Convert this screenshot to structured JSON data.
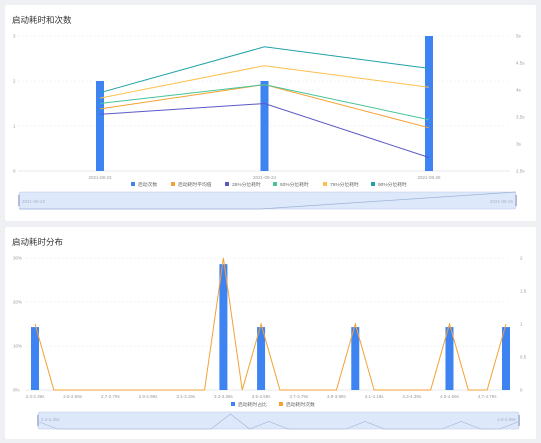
{
  "panels": {
    "startup": {
      "title": "启动耗时和次数"
    },
    "distribution": {
      "title": "启动耗时分布"
    }
  },
  "colors": {
    "bar": "#3e83f2",
    "orange": "#f5a134",
    "purple": "#5b58c6",
    "green": "#45c497",
    "yellow": "#fbc04c",
    "teal": "#1fa2a8",
    "slider_fill": "#dde8fb",
    "slider_border": "#b8c8e4"
  },
  "chart_data": [
    {
      "type": "bar",
      "title": "启动耗时和次数",
      "categories": [
        "2021-08-23",
        "2021-08-24",
        "2021-08-25"
      ],
      "y_left": {
        "ticks": [
          "0",
          "1",
          "2",
          "3"
        ],
        "ylim": [
          0,
          3
        ]
      },
      "y_right": {
        "ticks": [
          "2.5s",
          "3s",
          "3.5s",
          "4s",
          "4.5s",
          "5s"
        ],
        "ylim": [
          2.5,
          5
        ]
      },
      "bar_series": {
        "name": "启动次数",
        "values": [
          2,
          2,
          3
        ]
      },
      "line_series": [
        {
          "name": "启动耗时平均值",
          "color": "orange",
          "values": [
            3.65,
            4.1,
            3.3
          ]
        },
        {
          "name": "25%分位耗时",
          "color": "purple",
          "values": [
            3.55,
            3.75,
            2.75
          ]
        },
        {
          "name": "50%分位耗时",
          "color": "green",
          "values": [
            3.75,
            4.1,
            3.45
          ]
        },
        {
          "name": "75%分位耗时",
          "color": "yellow",
          "values": [
            3.85,
            4.45,
            4.05
          ]
        },
        {
          "name": "90%分位耗时",
          "color": "teal",
          "values": [
            3.95,
            4.8,
            4.4
          ]
        }
      ],
      "legend": [
        "启动次数",
        "启动耗时平均值",
        "25%分位耗时",
        "50%分位耗时",
        "75%分位耗时",
        "90%分位耗时"
      ],
      "zoom": {
        "start_label": "2021-08-23",
        "end_label": "2021-08-25"
      }
    },
    {
      "type": "bar",
      "title": "启动耗时分布",
      "categories": [
        "2.3-2.39s",
        "2.4-2.49s",
        "2.5-2.59s",
        "2.6-2.69s",
        "2.7-2.79s",
        "2.8-2.89s",
        "2.9-2.99s",
        "3-3.09s",
        "3.1-3.19s",
        "3.2-3.29s",
        "3.3-3.39s",
        "3.4-3.49s",
        "3.5-3.59s",
        "3.6-3.69s",
        "3.7-3.79s",
        "3.8-3.89s",
        "3.9-3.99s",
        "4-4.09s",
        "4.1-4.19s",
        "4.2-4.29s",
        "4.3-4.39s",
        "4.4-4.49s",
        "4.5-4.59s",
        "4.6-4.69s",
        "4.7-4.79s",
        "4.8-4.89s"
      ],
      "x_tick_labels": [
        "2.3-2.39s",
        "2.5-2.59s",
        "2.7-2.79s",
        "2.9-2.99s",
        "3.1-3.19s",
        "3.3-3.39s",
        "3.5-3.59s",
        "3.7-3.79s",
        "3.9-3.99s",
        "4.1-4.19s",
        "4.3-4.39s",
        "4.5-4.59s",
        "4.7-4.79s"
      ],
      "y_left": {
        "ticks": [
          "0%",
          "10%",
          "20%",
          "30%"
        ],
        "ylim": [
          0,
          30
        ]
      },
      "y_right": {
        "ticks": [
          "0",
          "0.5",
          "1",
          "1.5",
          "2"
        ],
        "ylim": [
          0,
          2
        ]
      },
      "bar_series": {
        "name": "启动耗时占比",
        "values": [
          14.3,
          0,
          0,
          0,
          0,
          0,
          0,
          0,
          0,
          0,
          28.6,
          0,
          14.3,
          0,
          0,
          0,
          0,
          14.3,
          0,
          0,
          0,
          0,
          14.3,
          0,
          0,
          14.3
        ]
      },
      "line_series": [
        {
          "name": "启动耗时次数",
          "color": "orange",
          "values": [
            1,
            0,
            0,
            0,
            0,
            0,
            0,
            0,
            0,
            0,
            2,
            0,
            1,
            0,
            0,
            0,
            0,
            1,
            0,
            0,
            0,
            0,
            1,
            0,
            0,
            1
          ]
        }
      ],
      "legend": [
        "启动耗时占比",
        "启动耗时次数"
      ],
      "zoom": {
        "start_label": "2.3-2.39s",
        "end_label": "4.8-4.89s"
      }
    }
  ]
}
